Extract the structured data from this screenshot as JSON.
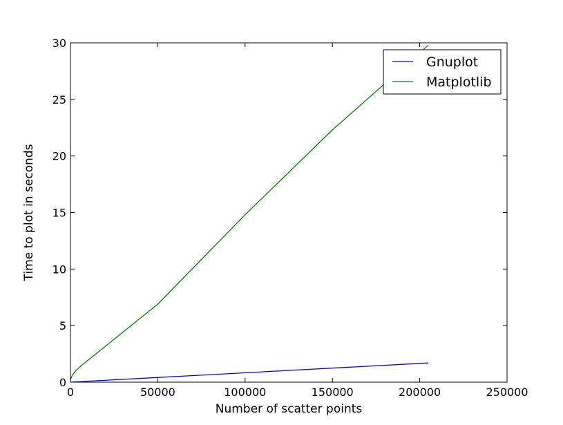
{
  "chart_data": {
    "type": "line",
    "xlabel": "Number of scatter points",
    "ylabel": "Time to plot in seconds",
    "xlim": [
      0,
      250000
    ],
    "ylim": [
      0,
      30
    ],
    "x_ticks": [
      0,
      50000,
      100000,
      150000,
      200000,
      250000
    ],
    "y_ticks": [
      0,
      5,
      10,
      15,
      20,
      25,
      30
    ],
    "grid": false,
    "legend_position": "top-right",
    "series": [
      {
        "name": "Gnuplot",
        "color": "#0000ff",
        "x": [
          0,
          205000
        ],
        "y": [
          0.0,
          1.7
        ]
      },
      {
        "name": "Matplotlib",
        "color": "#008000",
        "x": [
          0,
          1000,
          3000,
          6500,
          50000,
          100000,
          150000,
          205000
        ],
        "y": [
          0.2,
          0.6,
          1.0,
          1.5,
          6.9,
          14.8,
          22.3,
          29.8
        ]
      }
    ]
  }
}
